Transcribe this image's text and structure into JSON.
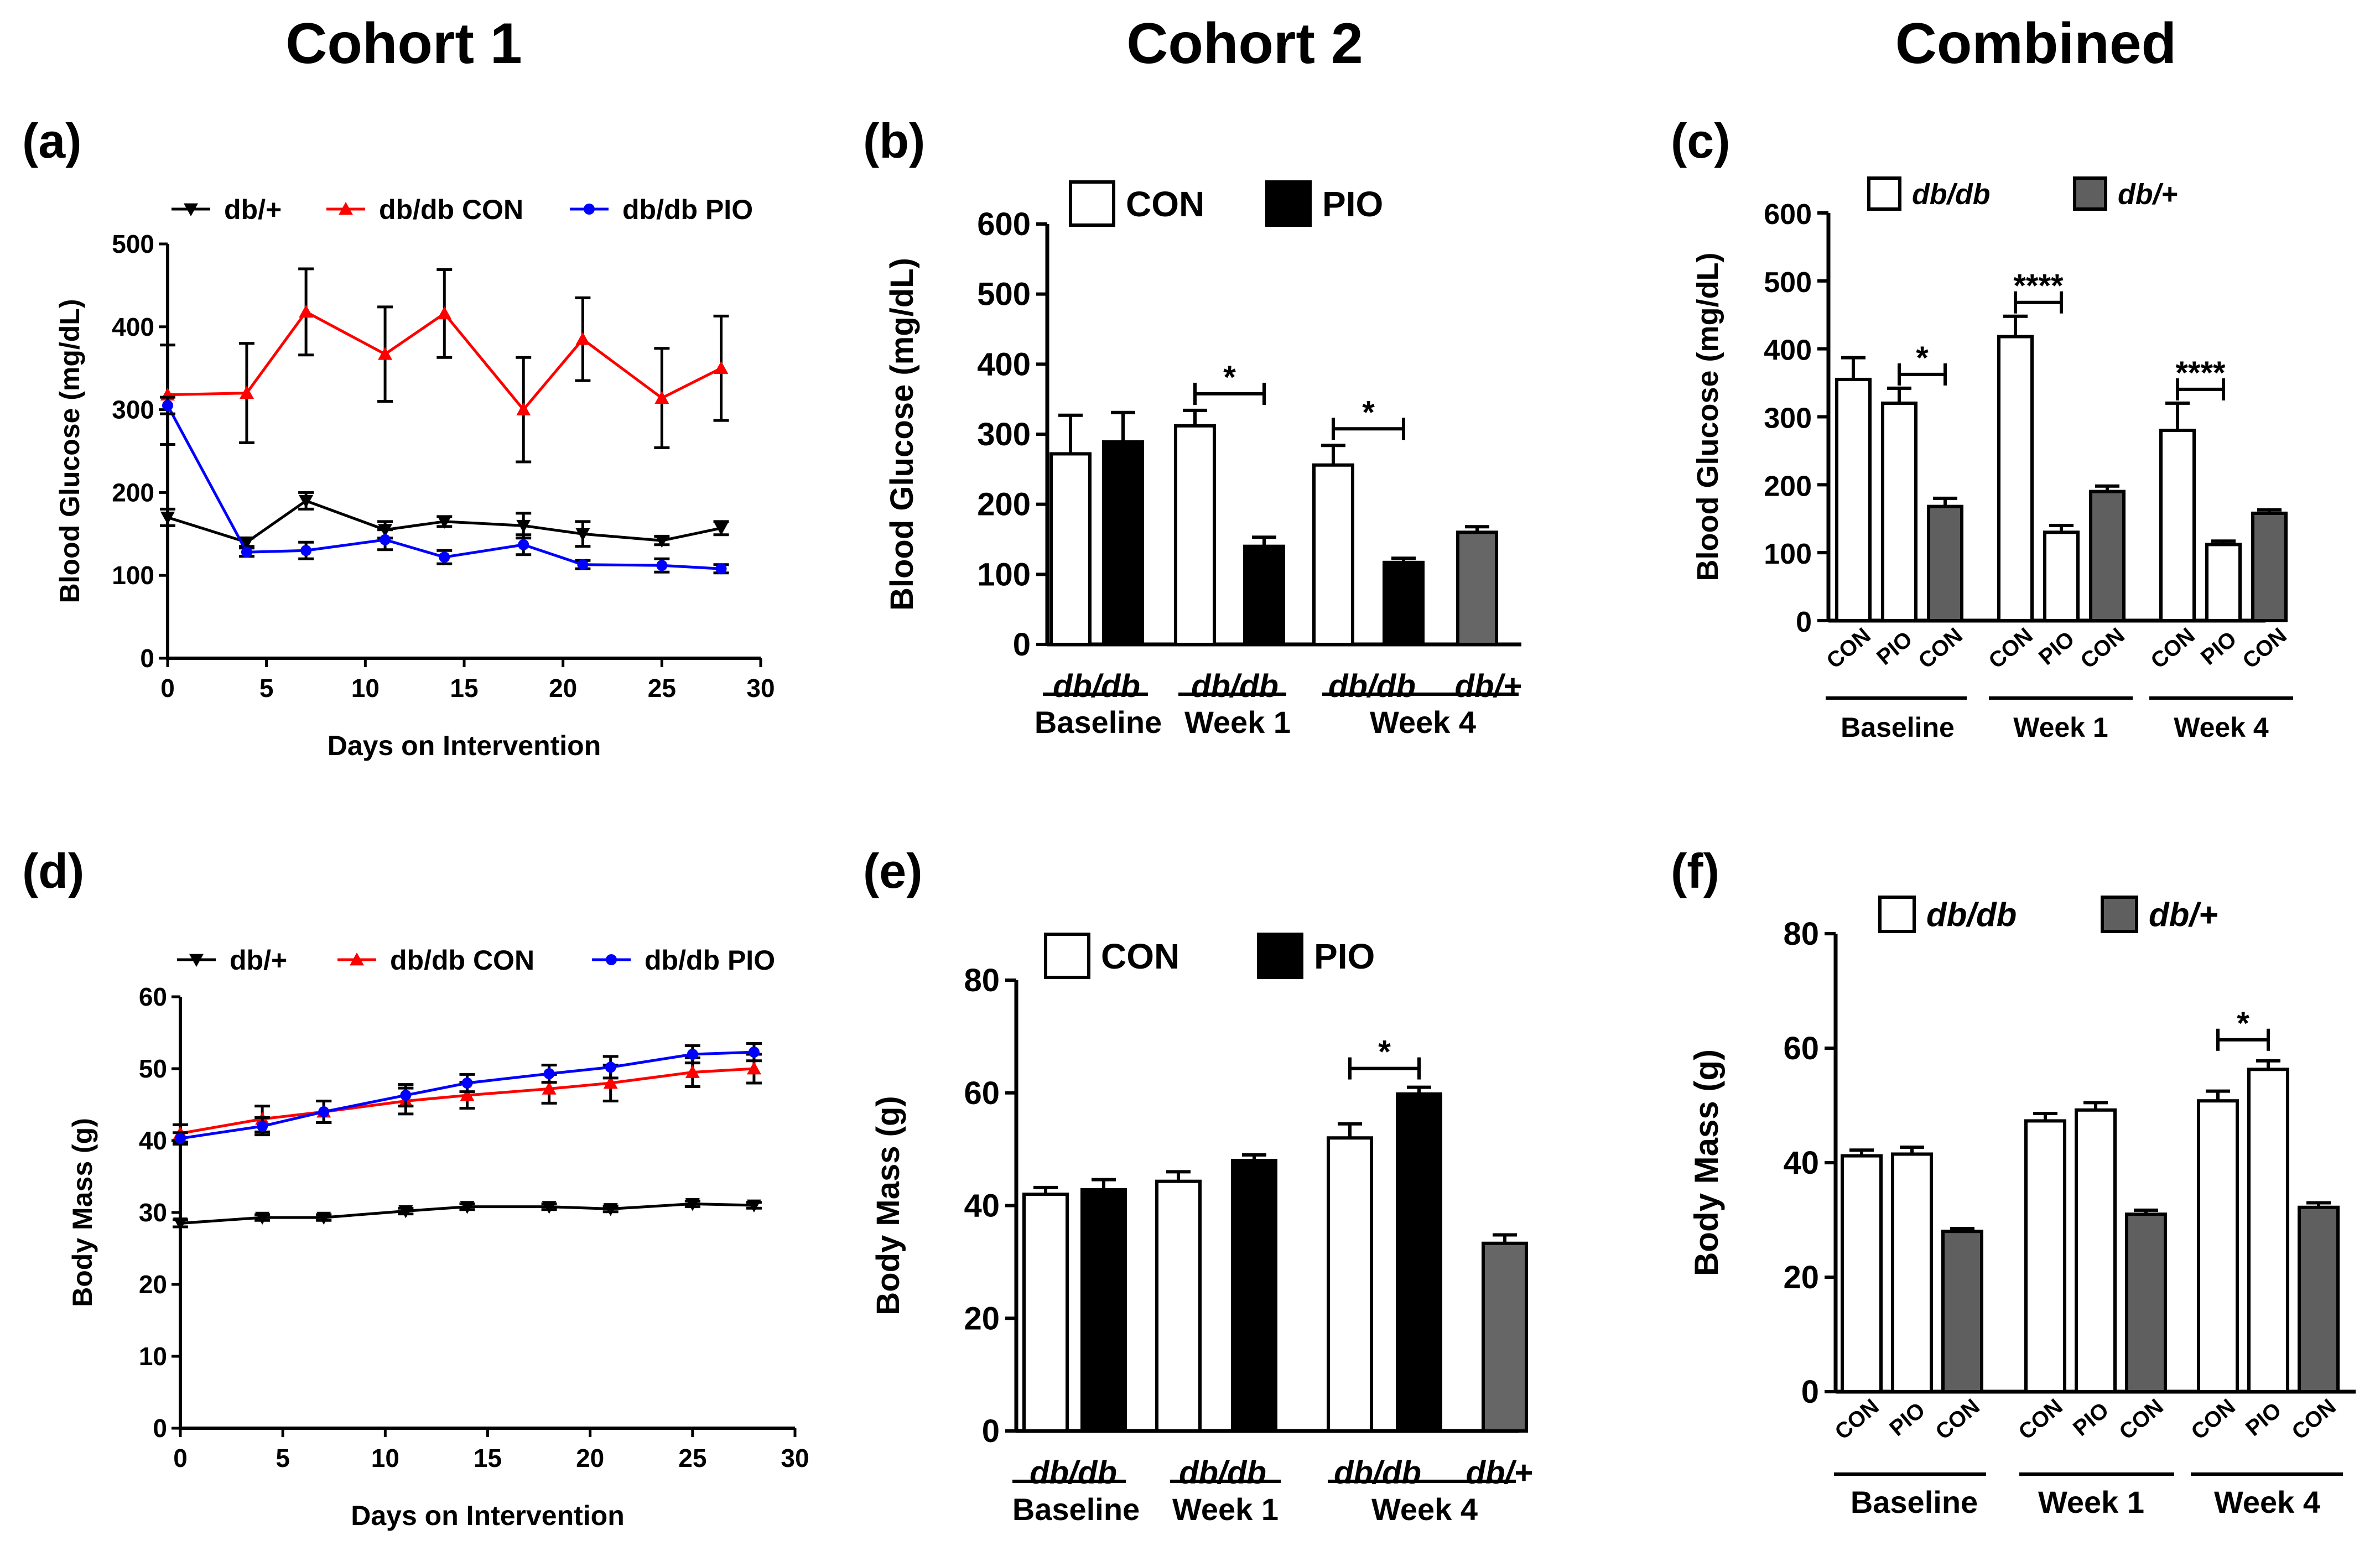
{
  "columns": [
    "Cohort 1",
    "Cohort 2",
    "Combined"
  ],
  "colors": {
    "black": "#000000",
    "red": "#ff0000",
    "blue": "#0000ff",
    "gray": "#5f5f5f",
    "dark_gray": "#666666",
    "white": "#ffffff"
  },
  "chart_data": [
    {
      "id": "a",
      "panel_label": "(a)",
      "type": "line",
      "xlabel": "Days on Intervention",
      "ylabel": "Blood Glucose (mg/dL)",
      "xlim": [
        0,
        30
      ],
      "ylim": [
        0,
        500
      ],
      "xticks": [
        0,
        5,
        10,
        15,
        20,
        25,
        30
      ],
      "yticks": [
        0,
        100,
        200,
        300,
        400,
        500
      ],
      "x": [
        0,
        4,
        7,
        11,
        14,
        18,
        21,
        25,
        28
      ],
      "series": [
        {
          "name": "db/+",
          "color": "#000000",
          "marker": "tri-down",
          "values": [
            170,
            140,
            190,
            155,
            165,
            160,
            150,
            142,
            157
          ],
          "errors": [
            10,
            5,
            10,
            10,
            6,
            15,
            15,
            5,
            8
          ]
        },
        {
          "name": "db/db CON",
          "color": "#ff0000",
          "marker": "tri-up",
          "values": [
            318,
            320,
            418,
            367,
            416,
            300,
            385,
            314,
            350
          ],
          "errors": [
            60,
            60,
            52,
            57,
            53,
            63,
            50,
            60,
            63
          ]
        },
        {
          "name": "db/db PIO",
          "color": "#0000ff",
          "marker": "circle",
          "values": [
            305,
            128,
            130,
            143,
            122,
            137,
            113,
            112,
            108
          ],
          "errors": [
            10,
            5,
            10,
            12,
            8,
            12,
            5,
            8,
            5
          ]
        }
      ]
    },
    {
      "id": "b",
      "panel_label": "(b)",
      "type": "bar",
      "ylabel": "Blood Glucose (mg/dL)",
      "ylim": [
        0,
        600
      ],
      "yticks": [
        0,
        100,
        200,
        300,
        400,
        500,
        600
      ],
      "legend": [
        {
          "label": "CON",
          "fill": "#ffffff"
        },
        {
          "label": "PIO",
          "fill": "#000000"
        }
      ],
      "bars": [
        {
          "value": 272,
          "error": 55,
          "fill": "#ffffff"
        },
        {
          "value": 289,
          "error": 42,
          "fill": "#000000"
        },
        {
          "value": 312,
          "error": 22,
          "fill": "#ffffff"
        },
        {
          "value": 140,
          "error": 13,
          "fill": "#000000"
        },
        {
          "value": 256,
          "error": 28,
          "fill": "#ffffff"
        },
        {
          "value": 117,
          "error": 6,
          "fill": "#000000"
        },
        {
          "value": 160,
          "error": 8,
          "fill": "#666666"
        }
      ],
      "strain_labels": [
        "db/db",
        "db/db",
        "db/db",
        "db/+"
      ],
      "group_labels": [
        "Baseline",
        "Week 1",
        "Week 4"
      ],
      "significance": [
        {
          "bars": [
            2,
            3
          ],
          "label": "*"
        },
        {
          "bars": [
            4,
            5
          ],
          "label": "*"
        }
      ]
    },
    {
      "id": "c",
      "panel_label": "(c)",
      "type": "bar",
      "ylabel": "Blood Glucose (mg/dL)",
      "ylim": [
        0,
        600
      ],
      "yticks": [
        0,
        100,
        200,
        300,
        400,
        500,
        600
      ],
      "legend": [
        {
          "label": "db/db",
          "fill": "#ffffff"
        },
        {
          "label": "db/+",
          "fill": "#5f5f5f"
        }
      ],
      "bars": [
        {
          "value": 355,
          "error": 32,
          "fill": "#ffffff"
        },
        {
          "value": 320,
          "error": 22,
          "fill": "#ffffff"
        },
        {
          "value": 168,
          "error": 12,
          "fill": "#5f5f5f"
        },
        {
          "value": 418,
          "error": 30,
          "fill": "#ffffff"
        },
        {
          "value": 130,
          "error": 10,
          "fill": "#ffffff"
        },
        {
          "value": 190,
          "error": 8,
          "fill": "#5f5f5f"
        },
        {
          "value": 280,
          "error": 40,
          "fill": "#ffffff"
        },
        {
          "value": 112,
          "error": 5,
          "fill": "#ffffff"
        },
        {
          "value": 158,
          "error": 5,
          "fill": "#5f5f5f"
        }
      ],
      "bar_labels": [
        "CON",
        "PIO",
        "CON",
        "CON",
        "PIO",
        "CON",
        "CON",
        "PIO",
        "CON"
      ],
      "group_labels": [
        "Baseline",
        "Week 1",
        "Week 4"
      ],
      "significance": [
        {
          "bars": [
            1,
            2
          ],
          "label": "*"
        },
        {
          "bars": [
            3,
            4
          ],
          "label": "****"
        },
        {
          "bars": [
            6,
            7
          ],
          "label": "****"
        }
      ]
    },
    {
      "id": "d",
      "panel_label": "(d)",
      "type": "line",
      "xlabel": "Days on Intervention",
      "ylabel": "Body Mass (g)",
      "xlim": [
        0,
        30
      ],
      "ylim": [
        0,
        60
      ],
      "xticks": [
        0,
        5,
        10,
        15,
        20,
        25,
        30
      ],
      "yticks": [
        0,
        10,
        20,
        30,
        40,
        50,
        60
      ],
      "x": [
        0,
        4,
        7,
        11,
        14,
        18,
        21,
        25,
        28
      ],
      "series": [
        {
          "name": "db/+",
          "color": "#000000",
          "marker": "tri-down",
          "values": [
            28.5,
            29.3,
            29.3,
            30.2,
            30.8,
            30.8,
            30.5,
            31.2,
            31.0
          ],
          "errors": [
            0.5,
            0.4,
            0.4,
            0.4,
            0.4,
            0.4,
            0.4,
            0.4,
            0.4
          ]
        },
        {
          "name": "db/db CON",
          "color": "#ff0000",
          "marker": "tri-up",
          "values": [
            41.0,
            43.0,
            44.0,
            45.5,
            46.3,
            47.2,
            48.0,
            49.5,
            50.0
          ],
          "errors": [
            1.2,
            1.8,
            1.5,
            1.8,
            1.8,
            2.0,
            2.5,
            2.0,
            2.0
          ]
        },
        {
          "name": "db/db PIO",
          "color": "#0000ff",
          "marker": "circle",
          "values": [
            40.3,
            42.0,
            44.0,
            46.3,
            48.0,
            49.3,
            50.2,
            52.0,
            52.3
          ],
          "errors": [
            0.8,
            1.2,
            1.5,
            1.5,
            1.2,
            1.2,
            1.5,
            1.2,
            1.2
          ]
        }
      ]
    },
    {
      "id": "e",
      "panel_label": "(e)",
      "type": "bar",
      "ylabel": "Body Mass (g)",
      "ylim": [
        0,
        80
      ],
      "yticks": [
        0,
        20,
        40,
        60,
        80
      ],
      "legend": [
        {
          "label": "CON",
          "fill": "#ffffff"
        },
        {
          "label": "PIO",
          "fill": "#000000"
        }
      ],
      "bars": [
        {
          "value": 42.0,
          "error": 1.2,
          "fill": "#ffffff"
        },
        {
          "value": 42.8,
          "error": 1.8,
          "fill": "#000000"
        },
        {
          "value": 44.3,
          "error": 1.7,
          "fill": "#ffffff"
        },
        {
          "value": 48.0,
          "error": 1.0,
          "fill": "#000000"
        },
        {
          "value": 52.0,
          "error": 2.5,
          "fill": "#ffffff"
        },
        {
          "value": 59.8,
          "error": 1.2,
          "fill": "#000000"
        },
        {
          "value": 33.3,
          "error": 1.5,
          "fill": "#666666"
        }
      ],
      "strain_labels": [
        "db/db",
        "db/db",
        "db/db",
        "db/+"
      ],
      "group_labels": [
        "Baseline",
        "Week 1",
        "Week 4"
      ],
      "significance": [
        {
          "bars": [
            4,
            5
          ],
          "label": "*"
        }
      ]
    },
    {
      "id": "f",
      "panel_label": "(f)",
      "type": "bar",
      "ylabel": "Body Mass (g)",
      "ylim": [
        0,
        80
      ],
      "yticks": [
        0,
        20,
        40,
        60,
        80
      ],
      "legend": [
        {
          "label": "db/db",
          "fill": "#ffffff"
        },
        {
          "label": "db/+",
          "fill": "#5f5f5f"
        }
      ],
      "bars": [
        {
          "value": 41.2,
          "error": 1.0,
          "fill": "#ffffff"
        },
        {
          "value": 41.5,
          "error": 1.2,
          "fill": "#ffffff"
        },
        {
          "value": 28.0,
          "error": 0.5,
          "fill": "#5f5f5f"
        },
        {
          "value": 47.3,
          "error": 1.3,
          "fill": "#ffffff"
        },
        {
          "value": 49.2,
          "error": 1.3,
          "fill": "#ffffff"
        },
        {
          "value": 31.0,
          "error": 0.7,
          "fill": "#5f5f5f"
        },
        {
          "value": 50.8,
          "error": 1.7,
          "fill": "#ffffff"
        },
        {
          "value": 56.3,
          "error": 1.5,
          "fill": "#ffffff"
        },
        {
          "value": 32.2,
          "error": 0.8,
          "fill": "#5f5f5f"
        }
      ],
      "bar_labels": [
        "CON",
        "PIO",
        "CON",
        "CON",
        "PIO",
        "CON",
        "CON",
        "PIO",
        "CON"
      ],
      "group_labels": [
        "Baseline",
        "Week 1",
        "Week 4"
      ],
      "significance": [
        {
          "bars": [
            6,
            7
          ],
          "label": "*"
        }
      ]
    }
  ]
}
